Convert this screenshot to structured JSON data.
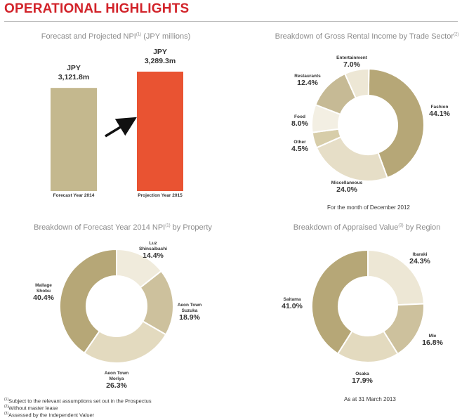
{
  "page": {
    "title": "OPERATIONAL HIGHLIGHTS"
  },
  "colors": {
    "title": "#d2232a",
    "bar_2014": "#c4b88e",
    "bar_2015": "#e95332",
    "donut_tan": "#b6a777",
    "donut_beige": "#d7cda9",
    "donut_lightbeige": "#e9e2cd",
    "donut_offwhite": "#f3efe3"
  },
  "chart_data": [
    {
      "type": "bar",
      "title": "Forecast and Projected NPI",
      "title_sup": "(1)",
      "title_unit": "(JPY millions)",
      "categories": [
        "Forecast Year 2014",
        "Projection Year 2015"
      ],
      "values": [
        3121.8,
        3289.3
      ],
      "value_labels": [
        {
          "currency": "JPY",
          "amount": "3,121.8m"
        },
        {
          "currency": "JPY",
          "amount": "3,289.3m"
        }
      ],
      "colors": [
        "#c4b88e",
        "#e95332"
      ],
      "arrow": "up-right between bars"
    },
    {
      "type": "pie",
      "title": "Breakdown of Gross Rental Income by Trade Sector",
      "title_sup": "(2)",
      "note": "For the month of December 2012",
      "slices": [
        {
          "label": "Fashion",
          "value": 44.1,
          "pct": "44.1%",
          "color": "#b6a777"
        },
        {
          "label": "Miscellaneous",
          "value": 24.0,
          "pct": "24.0%",
          "color": "#e6dec7"
        },
        {
          "label": "Other",
          "value": 4.5,
          "pct": "4.5%",
          "color": "#d7cda9"
        },
        {
          "label": "Food",
          "value": 8.0,
          "pct": "8.0%",
          "color": "#f3efe3"
        },
        {
          "label": "Restaurants",
          "value": 12.4,
          "pct": "12.4%",
          "color": "#c6ba95"
        },
        {
          "label": "Entertainment",
          "value": 7.0,
          "pct": "7.0%",
          "color": "#ede7d5"
        }
      ]
    },
    {
      "type": "pie",
      "title": "Breakdown of Forecast Year 2014 NPI",
      "title_sup": "(1)",
      "title_suffix": "by Property",
      "slices": [
        {
          "label": "Luz Shinsaibashi",
          "label_lines": [
            "Luz",
            "Shinsaibashi"
          ],
          "value": 14.4,
          "pct": "14.4%",
          "color": "#f0ebdc"
        },
        {
          "label": "Aeon Town Suzuka",
          "label_lines": [
            "Aeon Town",
            "Suzuka"
          ],
          "value": 18.9,
          "pct": "18.9%",
          "color": "#cdc19d"
        },
        {
          "label": "Aeon Town Moriya",
          "label_lines": [
            "Aeon Town",
            "Moriya"
          ],
          "value": 26.3,
          "pct": "26.3%",
          "color": "#e3dabf"
        },
        {
          "label": "Mallage Shobu",
          "label_lines": [
            "Mallage",
            "Shobu"
          ],
          "value": 40.4,
          "pct": "40.4%",
          "color": "#b6a777"
        }
      ]
    },
    {
      "type": "pie",
      "title": "Breakdown of Appraised Value",
      "title_sup": "(3)",
      "title_suffix": "by Region",
      "note": "As at 31 March 2013",
      "slices": [
        {
          "label": "Ibaraki",
          "value": 24.3,
          "pct": "24.3%",
          "color": "#ede7d5"
        },
        {
          "label": "Mie",
          "value": 16.8,
          "pct": "16.8%",
          "color": "#cdc19d"
        },
        {
          "label": "Osaka",
          "value": 17.9,
          "pct": "17.9%",
          "color": "#e3dabf"
        },
        {
          "label": "Saitama",
          "value": 41.0,
          "pct": "41.0%",
          "color": "#b6a777"
        }
      ]
    }
  ],
  "footnotes": [
    {
      "mark": "(1)",
      "text": "Subject to the relevant assumptions set out in the Prospectus"
    },
    {
      "mark": "(2)",
      "text": "Without master lease"
    },
    {
      "mark": "(3)",
      "text": "Assessed by the Independent Valuer"
    }
  ]
}
